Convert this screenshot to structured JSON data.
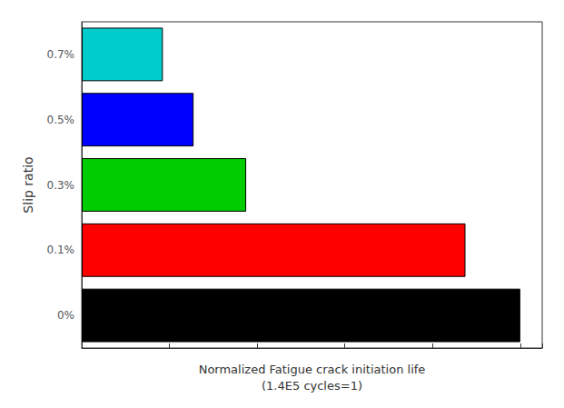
{
  "chart_data": {
    "type": "bar",
    "orientation": "horizontal",
    "categories": [
      "0%",
      "0.1%",
      "0.3%",
      "0.5%",
      "0.7%"
    ],
    "values": [
      1.0,
      0.875,
      0.375,
      0.255,
      0.185
    ],
    "colors": [
      "#000000",
      "#ff0000",
      "#00cc00",
      "#0000ff",
      "#00cccc"
    ],
    "xlabel": "Normalized Fatigue crack initiation life\n(1.4E5 cycles=1)",
    "ylabel": "Slip ratio",
    "xlim": [
      0,
      1.05
    ],
    "xticks": [
      0,
      0.2,
      0.4,
      0.6,
      0.8,
      1.0
    ],
    "tick_labels": "y",
    "grid": false
  }
}
